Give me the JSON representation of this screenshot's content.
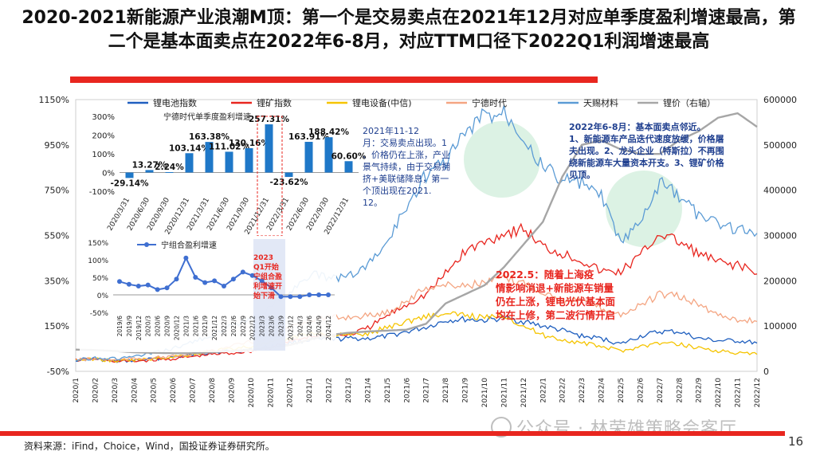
{
  "title": "2020-2021新能源产业浪潮M顶：第一个是交易卖点在2021年12月对应单季度盈利增速最高，第二个是基本面卖点在2022年6-8月，对应TTM口径下2022Q1利润增速最高",
  "source": "资料来源：iFind，Choice，Wind，国投证券证券研究所。",
  "page_number": "16",
  "watermark": "公众号 · 林荣雄策略会客厅",
  "colors": {
    "accent_red": "#e8261f"
  },
  "chart_data": [
    {
      "type": "line",
      "x": [
        "2020/1",
        "2020/2",
        "2020/3",
        "2020/4",
        "2020/5",
        "2020/6",
        "2020/7",
        "2020/8",
        "2020/9",
        "2020/10",
        "2020/11",
        "2020/12",
        "2021/1",
        "2021/2",
        "2021/3",
        "2021/4",
        "2021/5",
        "2021/6",
        "2021/7",
        "2021/8",
        "2021/9",
        "2021/10",
        "2021/11",
        "2021/12",
        "2022/1",
        "2022/2",
        "2022/3",
        "2022/4",
        "2022/5",
        "2022/6",
        "2022/7",
        "2022/8",
        "2022/9",
        "2022/10",
        "2022/11",
        "2022/12"
      ],
      "y_left_ticks": [
        "-50%",
        "150%",
        "350%",
        "550%",
        "750%",
        "950%",
        "1150%"
      ],
      "y_left_range": [
        -50,
        1150
      ],
      "y_right_ticks": [
        "0",
        "100000",
        "200000",
        "300000",
        "400000",
        "500000",
        "600000"
      ],
      "y_right_range": [
        0,
        600000
      ],
      "series": [
        {
          "name": "锂电池指数",
          "axis": "left",
          "color": "#1f5fbf",
          "values": [
            0,
            5,
            -8,
            -2,
            5,
            12,
            22,
            35,
            40,
            45,
            60,
            75,
            90,
            90,
            95,
            95,
            105,
            125,
            145,
            175,
            180,
            175,
            185,
            170,
            150,
            130,
            105,
            95,
            70,
            105,
            125,
            125,
            95,
            85,
            85,
            75
          ]
        },
        {
          "name": "锂矿指数",
          "axis": "left",
          "color": "#e8261f",
          "values": [
            0,
            5,
            -5,
            -5,
            0,
            5,
            15,
            25,
            30,
            40,
            55,
            80,
            105,
            110,
            110,
            140,
            195,
            245,
            290,
            380,
            480,
            520,
            560,
            580,
            500,
            470,
            440,
            390,
            390,
            460,
            560,
            520,
            470,
            430,
            420,
            380
          ]
        },
        {
          "name": "锂电设备(中信)",
          "axis": "left",
          "color": "#f5c400",
          "values": [
            0,
            5,
            -5,
            0,
            5,
            15,
            25,
            40,
            50,
            60,
            75,
            95,
            120,
            110,
            110,
            115,
            145,
            170,
            195,
            200,
            200,
            185,
            200,
            150,
            110,
            90,
            75,
            60,
            40,
            60,
            75,
            70,
            55,
            40,
            30,
            25
          ]
        },
        {
          "name": "宁德时代",
          "axis": "left",
          "color": "#f4a582",
          "values": [
            0,
            5,
            0,
            5,
            10,
            15,
            25,
            40,
            60,
            80,
            100,
            140,
            180,
            185,
            190,
            195,
            210,
            260,
            320,
            330,
            330,
            340,
            360,
            340,
            300,
            270,
            260,
            230,
            200,
            240,
            290,
            280,
            245,
            200,
            180,
            170
          ]
        },
        {
          "name": "天赐材料",
          "axis": "left",
          "color": "#5b9bd5",
          "values": [
            0,
            10,
            5,
            15,
            30,
            50,
            80,
            110,
            150,
            180,
            230,
            300,
            380,
            360,
            370,
            420,
            520,
            680,
            820,
            880,
            1000,
            1080,
            1100,
            1000,
            850,
            800,
            780,
            720,
            520,
            600,
            780,
            720,
            640,
            600,
            580,
            560
          ]
        },
        {
          "name": "锂价（右轴）",
          "axis": "right",
          "color": "#a6a6a6",
          "values": [
            48000,
            47000,
            45000,
            42000,
            41000,
            40000,
            40000,
            42000,
            45000,
            48000,
            52000,
            58000,
            70000,
            80000,
            85000,
            88000,
            90000,
            92000,
            105000,
            150000,
            170000,
            190000,
            230000,
            280000,
            330000,
            430000,
            500000,
            510000,
            490000,
            480000,
            480000,
            510000,
            530000,
            560000,
            570000,
            540000
          ]
        }
      ],
      "annotations": [
        {
          "text": "2021年11-12月：交易卖点出现。1、价格仍在上涨，产业景气持续，由于交易拥挤+美联储降息，第一个顶出现在2021.12。"
        },
        {
          "text": "2022年6-8月：基本面卖点邻近。1、新能源车产品迭代速度放缓，价格屠夫出现。2、龙头企业（特斯拉）不再围绕新能源车大量资本开支。3、锂矿价格见顶。"
        },
        {
          "text": "2022.5：随着上海疫情影响消退+新能源车销量仍在上涨，锂电光伏基本面均在上修，第二波行情开启"
        },
        {
          "text": "2023Q1开始宁组合盈利增速开始下滑"
        }
      ]
    },
    {
      "type": "bar",
      "title": "宁德时代单季度盈利增速",
      "categories": [
        "2020/3/31",
        "2020/6/30",
        "2020/9/30",
        "2020/12/31",
        "2021/3/31",
        "2021/6/30",
        "2021/9/30",
        "2021/12/31",
        "2022/3/31",
        "2022/6/30",
        "2022/9/30",
        "2022/12/31"
      ],
      "values": [
        -29.14,
        13.27,
        2.24,
        103.14,
        163.38,
        111.02,
        130.16,
        257.31,
        -23.62,
        163.91,
        188.42,
        60.6
      ],
      "labels": [
        "-29.14%",
        "13.27%",
        "2.24%",
        "103.14%",
        "163.38%",
        "111.02%",
        "130.16%",
        "257.31%",
        "-23.62%",
        "163.91%",
        "188.42%",
        "60.60%"
      ],
      "y_ticks": [
        "-100%",
        "0%",
        "100%",
        "200%",
        "300%"
      ],
      "y_range": [
        -100,
        300
      ],
      "color": "#1f78c8"
    },
    {
      "type": "line",
      "title": "宁组合盈利增速",
      "categories": [
        "2019/6",
        "2019/9",
        "2019/12",
        "2020/3",
        "2020/6",
        "2020/9",
        "2020/12",
        "2021/3",
        "2021/6",
        "2021/9",
        "2021/12",
        "2022/3",
        "2022/6",
        "2022/9",
        "2022/12",
        "2023/3",
        "2023/6",
        "2023/9",
        "2023/12",
        "2024/3",
        "2024/6",
        "2024/9",
        "2024/12"
      ],
      "values": [
        38,
        30,
        25,
        28,
        15,
        20,
        45,
        105,
        50,
        35,
        40,
        25,
        45,
        65,
        55,
        40,
        20,
        -5,
        -5,
        -5,
        0,
        0,
        0
      ],
      "y_ticks": [
        "-50%",
        "0%",
        "50%",
        "100%",
        "150%"
      ],
      "y_range": [
        -50,
        150
      ],
      "color": "#3f6fd1"
    }
  ]
}
